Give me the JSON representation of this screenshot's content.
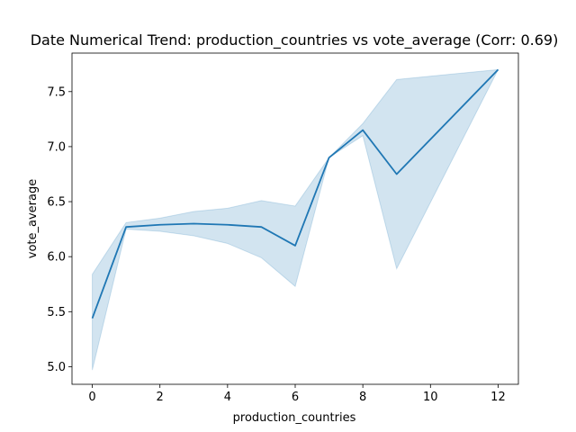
{
  "chart_data": {
    "type": "line",
    "title": "Date Numerical Trend: production_countries vs vote_average (Corr: 0.69)",
    "xlabel": "production_countries",
    "ylabel": "vote_average",
    "xlim": [
      -0.6,
      12.6
    ],
    "ylim": [
      4.84,
      7.85
    ],
    "x_ticks": [
      0,
      2,
      4,
      6,
      8,
      10,
      12
    ],
    "y_ticks": [
      5.0,
      5.5,
      6.0,
      6.5,
      7.0,
      7.5
    ],
    "grid": false,
    "series": [
      {
        "x": [
          0,
          1,
          2,
          3,
          4,
          5,
          6,
          7,
          8,
          9,
          12
        ],
        "y": [
          5.44,
          6.27,
          6.29,
          6.3,
          6.29,
          6.27,
          6.1,
          6.9,
          7.15,
          6.75,
          7.7
        ],
        "ci_lower": [
          4.97,
          6.25,
          6.23,
          6.19,
          6.12,
          5.99,
          5.73,
          6.9,
          7.1,
          5.89,
          7.7
        ],
        "ci_upper": [
          5.84,
          6.31,
          6.35,
          6.41,
          6.44,
          6.51,
          6.46,
          6.9,
          7.21,
          7.61,
          7.7
        ],
        "color": "#1f77b4",
        "band_color": "#1f77b4"
      }
    ]
  }
}
